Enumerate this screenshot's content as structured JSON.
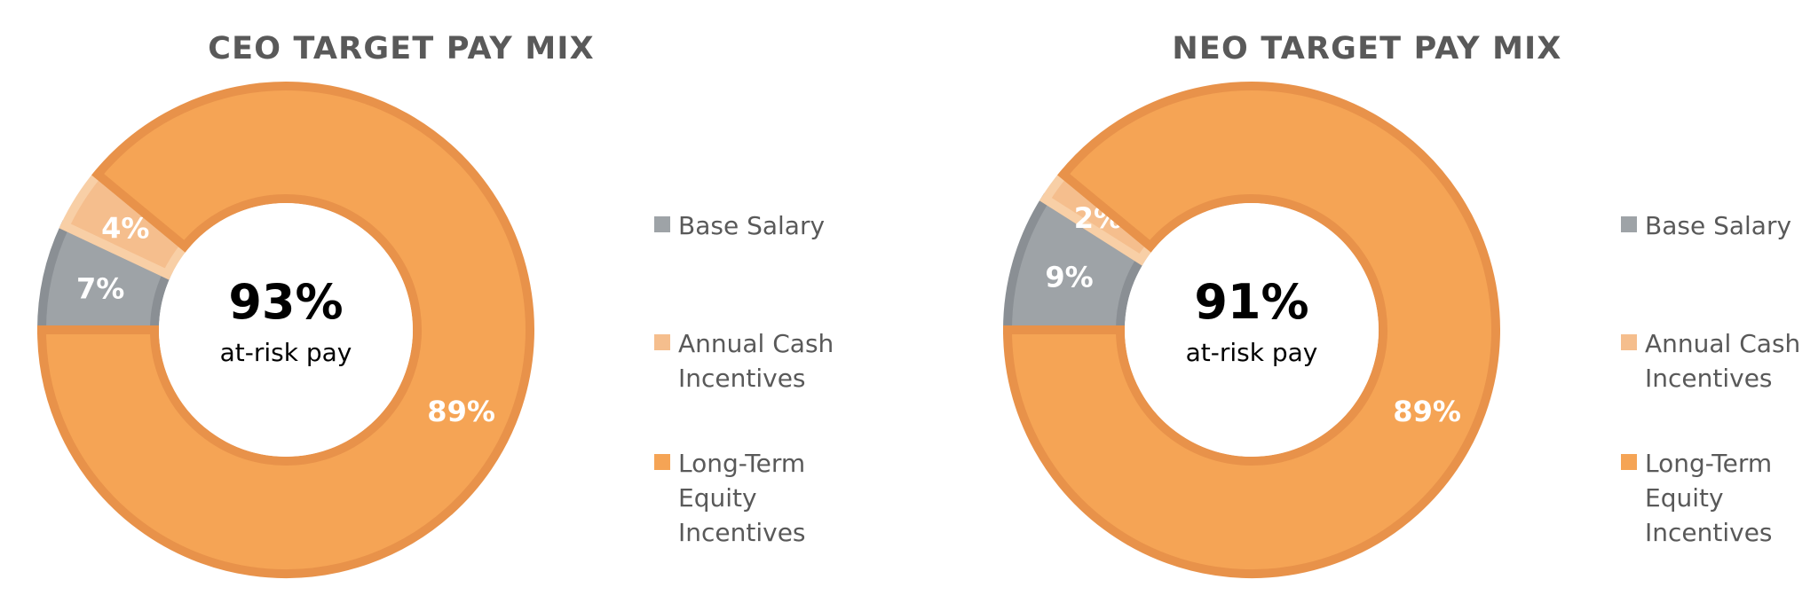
{
  "colors": {
    "base_salary": "#9ea3a7",
    "base_salary_stroke": "#8a8f94",
    "annual_cash": "#f5be8d",
    "annual_cash_stroke": "#f8cfa6",
    "long_term": "#f5a455",
    "long_term_stroke": "#e8924a"
  },
  "chart_data": [
    {
      "type": "donut",
      "title": "CEO TARGET PAY MIX",
      "center": {
        "value": "93%",
        "caption": "at-risk pay"
      },
      "series": [
        {
          "name": "Base Salary",
          "value": 7,
          "label": "7%"
        },
        {
          "name": "Annual Cash Incentives",
          "value": 4,
          "label": "4%"
        },
        {
          "name": "Long-Term Equity Incentives",
          "value": 89,
          "label": "89%"
        }
      ],
      "legend": {
        "placement": "right",
        "entries": [
          {
            "lines": [
              "Base Salary"
            ]
          },
          {
            "lines": [
              "Annual Cash",
              "Incentives"
            ]
          },
          {
            "lines": [
              "Long-Term",
              "Equity",
              "Incentives"
            ]
          }
        ]
      }
    },
    {
      "type": "donut",
      "title": "NEO TARGET PAY MIX",
      "center": {
        "value": "91%",
        "caption": "at-risk pay"
      },
      "series": [
        {
          "name": "Base Salary",
          "value": 9,
          "label": "9%"
        },
        {
          "name": "Annual Cash Incentives",
          "value": 2,
          "label": "2%"
        },
        {
          "name": "Long-Term Equity Incentives",
          "value": 89,
          "label": "89%"
        }
      ],
      "legend": {
        "placement": "right",
        "entries": [
          {
            "lines": [
              "Base Salary"
            ]
          },
          {
            "lines": [
              "Annual Cash",
              "Incentives"
            ]
          },
          {
            "lines": [
              "Long-Term",
              "Equity",
              "Incentives"
            ]
          }
        ]
      }
    }
  ]
}
